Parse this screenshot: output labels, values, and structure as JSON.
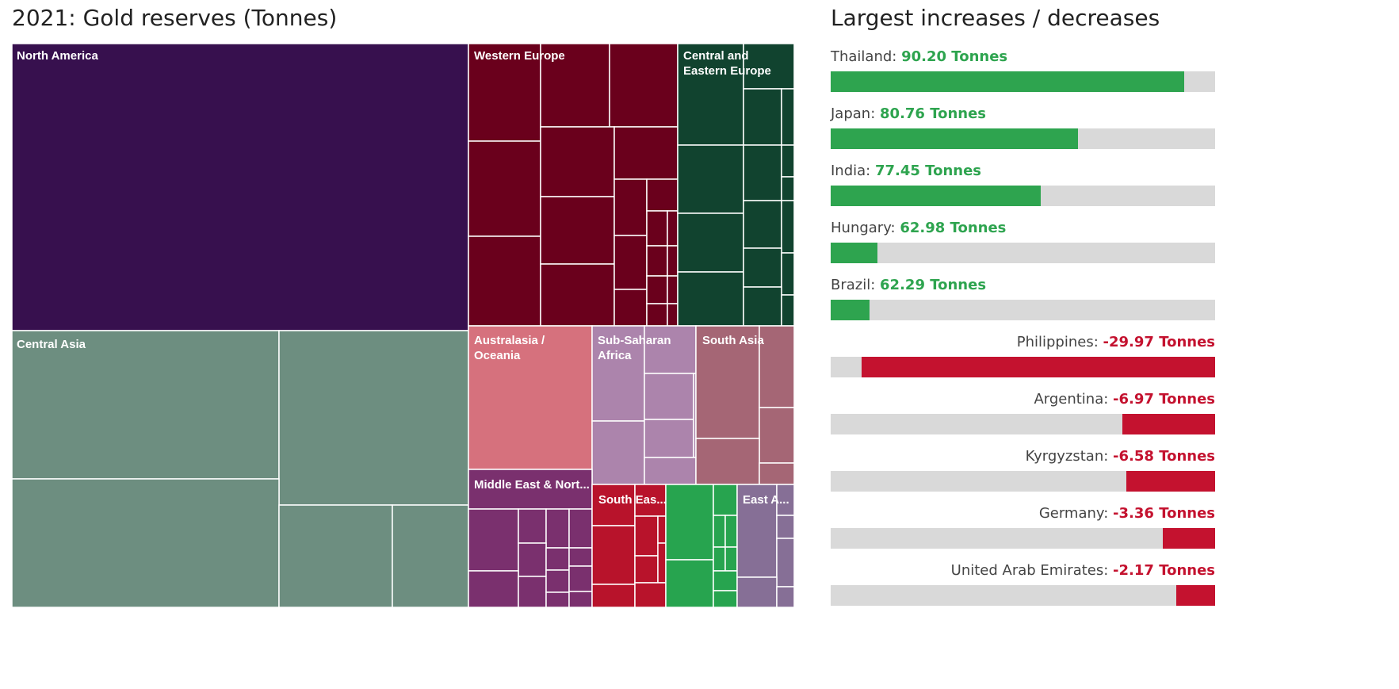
{
  "chart_data": [
    {
      "type": "treemap",
      "title": "2021: Gold reserves (Tonnes)",
      "regions": [
        {
          "name": "North America",
          "color": "#37104e"
        },
        {
          "name": "Western Europe",
          "color": "#6a001c"
        },
        {
          "name": "Central and Eastern Europe",
          "color": "#11432f"
        },
        {
          "name": "Central Asia",
          "color": "#6d8e80"
        },
        {
          "name": "Australasia / Oceania",
          "color": "#d6717d"
        },
        {
          "name": "Sub-Saharan Africa",
          "color": "#ac84ac"
        },
        {
          "name": "South Asia",
          "color": "#a56675"
        },
        {
          "name": "Middle East & Nort...",
          "color": "#7a306e"
        },
        {
          "name": "South Eas...",
          "color": "#b8132b"
        },
        {
          "name": "East A...",
          "color": "#866f96"
        }
      ],
      "accent_colors": {
        "south_east_asia_green": "#27a44f"
      }
    },
    {
      "type": "bar",
      "title": "Largest increases / decreases",
      "unit": "Tonnes",
      "items": [
        {
          "country": "Thailand:",
          "value": "90.20 Tonnes",
          "direction": "increase",
          "fill": 0.92
        },
        {
          "country": "Japan:",
          "value": "80.76 Tonnes",
          "direction": "increase",
          "fill": 0.643
        },
        {
          "country": "India:",
          "value": "77.45 Tonnes",
          "direction": "increase",
          "fill": 0.546
        },
        {
          "country": "Hungary:",
          "value": "62.98 Tonnes",
          "direction": "increase",
          "fill": 0.121
        },
        {
          "country": "Brazil:",
          "value": "62.29 Tonnes",
          "direction": "increase",
          "fill": 0.101
        },
        {
          "country": "Philippines:",
          "value": "-29.97 Tonnes",
          "direction": "decrease",
          "fill": 0.92
        },
        {
          "country": "Argentina:",
          "value": "-6.97 Tonnes",
          "direction": "decrease",
          "fill": 0.241
        },
        {
          "country": "Kyrgyzstan:",
          "value": "-6.58 Tonnes",
          "direction": "decrease",
          "fill": 0.231
        },
        {
          "country": "Germany:",
          "value": "-3.36 Tonnes",
          "direction": "decrease",
          "fill": 0.136
        },
        {
          "country": "United Arab Emirates:",
          "value": "-2.17 Tonnes",
          "direction": "decrease",
          "fill": 0.101
        }
      ],
      "colors": {
        "increase": "#2ea44f",
        "decrease": "#c4122f",
        "track": "#d9d9d9"
      }
    }
  ]
}
